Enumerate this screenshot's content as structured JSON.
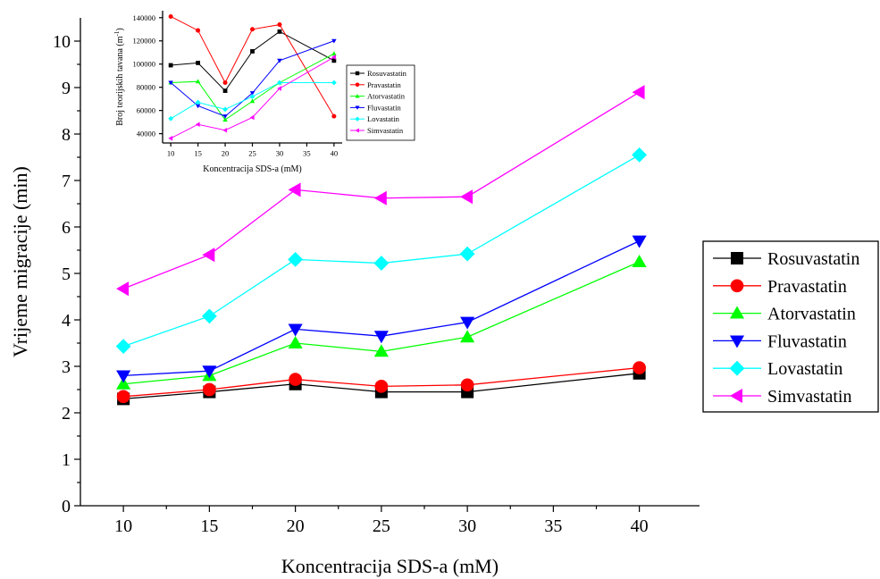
{
  "chart_data": [
    {
      "id": "main",
      "type": "line",
      "xlabel": "Koncentracija SDS-a (mM)",
      "ylabel": "Vrijeme migracije (min)",
      "xlim": [
        7.5,
        43.5
      ],
      "ylim": [
        0,
        10.5
      ],
      "xticks": [
        10,
        15,
        20,
        25,
        30,
        35,
        40
      ],
      "yticks": [
        0,
        1,
        2,
        3,
        4,
        5,
        6,
        7,
        8,
        9,
        10
      ],
      "legend_position": "right",
      "x": [
        10,
        15,
        20,
        25,
        30,
        40
      ],
      "series": [
        {
          "name": "Rosuvastatin",
          "color": "#000000",
          "marker": "square",
          "values": [
            2.3,
            2.45,
            2.62,
            2.45,
            2.45,
            2.85
          ]
        },
        {
          "name": "Pravastatin",
          "color": "#ff0000",
          "marker": "circle",
          "values": [
            2.35,
            2.5,
            2.72,
            2.57,
            2.6,
            2.97
          ]
        },
        {
          "name": "Atorvastatin",
          "color": "#00ff00",
          "marker": "triangle-up",
          "values": [
            2.62,
            2.8,
            3.5,
            3.32,
            3.63,
            5.25
          ]
        },
        {
          "name": "Fluvastatin",
          "color": "#0000ff",
          "marker": "triangle-down",
          "values": [
            2.8,
            2.9,
            3.8,
            3.65,
            3.95,
            5.7
          ]
        },
        {
          "name": "Lovastatin",
          "color": "#00ffff",
          "marker": "diamond",
          "values": [
            3.43,
            4.08,
            5.3,
            5.22,
            5.42,
            7.55
          ]
        },
        {
          "name": "Simvastatin",
          "color": "#ff00ff",
          "marker": "triangle-left",
          "values": [
            4.67,
            5.4,
            6.8,
            6.62,
            6.65,
            8.9
          ]
        }
      ]
    },
    {
      "id": "inset",
      "type": "line",
      "xlabel": "Koncentracija SDS-a (mM)",
      "ylabel": "Broj teorijskih tavana (m",
      "ylabel_sup": "-1",
      "ylabel_close": ")",
      "xlim": [
        8.5,
        41.5
      ],
      "ylim": [
        32000,
        146000
      ],
      "xticks": [
        10,
        15,
        20,
        25,
        30,
        35,
        40
      ],
      "yticks": [
        40000,
        60000,
        80000,
        100000,
        120000,
        140000
      ],
      "legend_position": "top-right",
      "x": [
        10,
        15,
        20,
        25,
        30,
        40
      ],
      "series": [
        {
          "name": "Rosuvastatin",
          "color": "#000000",
          "marker": "square",
          "values": [
            99000,
            101000,
            77000,
            111000,
            128000,
            103000
          ]
        },
        {
          "name": "Pravastatin",
          "color": "#ff0000",
          "marker": "circle",
          "values": [
            141000,
            129000,
            84000,
            130000,
            134000,
            55000
          ]
        },
        {
          "name": "Atorvastatin",
          "color": "#00ff00",
          "marker": "triangle-up",
          "values": [
            84000,
            85000,
            52000,
            68000,
            84000,
            109000
          ]
        },
        {
          "name": "Fluvastatin",
          "color": "#0000ff",
          "marker": "triangle-down",
          "values": [
            84000,
            64000,
            55000,
            75000,
            103000,
            120000
          ]
        },
        {
          "name": "Lovastatin",
          "color": "#00ffff",
          "marker": "diamond",
          "values": [
            53000,
            67000,
            61000,
            72000,
            84000,
            84000
          ]
        },
        {
          "name": "Simvastatin",
          "color": "#ff00ff",
          "marker": "triangle-left",
          "values": [
            36000,
            48000,
            43000,
            54000,
            79000,
            106000
          ]
        }
      ]
    }
  ]
}
